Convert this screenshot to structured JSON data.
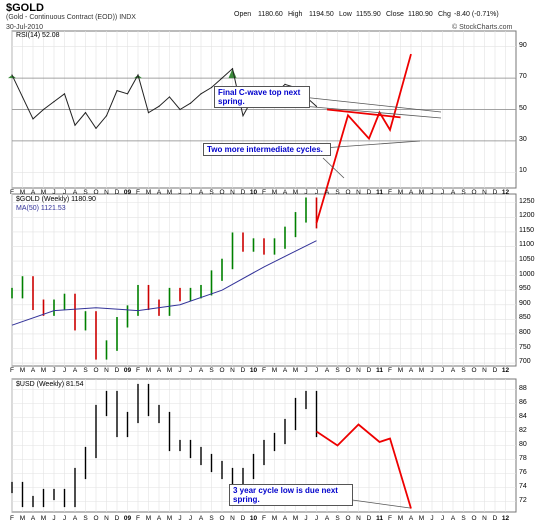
{
  "header": {
    "symbol": "$GOLD",
    "subtitle": "(Gold - Continuous Contract (EOD))  INDX",
    "date": "30-Jul-2010",
    "open_label": "Open",
    "open": "1180.60",
    "high_label": "High",
    "high": "1194.50",
    "low_label": "Low",
    "low": "1155.90",
    "close_label": "Close",
    "close": "1180.90",
    "chg_label": "Chg",
    "chg": "-8.40 (-0.71%)",
    "credit": "© StockCharts.com"
  },
  "panels": {
    "rsi_label": "RSI(14) 52.08",
    "gold_label": "$GOLD (Weekly) 1180.90",
    "ma_label": "MA(50) 1121.53",
    "usd_label": "$USD (Weekly) 81.54"
  },
  "annotations": {
    "rsi_note": "Final C-wave top next spring.",
    "gold_note": "Two more intermediate cycles.",
    "usd_note": "3 year cycle low is due next spring."
  },
  "colors": {
    "price_up": "#008000",
    "price_down": "#cc0000",
    "usd_bars": "#000000",
    "ma_line": "#333399",
    "rsi_line": "#222222",
    "rsi_fill_overbought": "#3a8a3a",
    "projection": "#ee0000",
    "annotation_text": "#0000cc",
    "gridline": "#e2e2e2",
    "threshold_line": "#888888"
  },
  "x_axis": {
    "labels": [
      "F",
      "M",
      "A",
      "M",
      "J",
      "J",
      "A",
      "S",
      "O",
      "N",
      "D",
      "09",
      "F",
      "M",
      "A",
      "M",
      "J",
      "J",
      "A",
      "S",
      "O",
      "N",
      "D",
      "10",
      "F",
      "M",
      "A",
      "M",
      "J",
      "J",
      "A",
      "S",
      "O",
      "N",
      "D",
      "11",
      "F",
      "M",
      "A",
      "M",
      "J",
      "J",
      "A",
      "S",
      "O",
      "N",
      "D",
      "12"
    ],
    "year_labels": [
      "09",
      "10",
      "11",
      "12"
    ]
  },
  "chart_data": [
    {
      "type": "line",
      "name": "RSI(14)",
      "x": [
        "2008-02",
        "2008-03",
        "2008-04",
        "2008-05",
        "2008-06",
        "2008-07",
        "2008-08",
        "2008-09",
        "2008-10",
        "2008-11",
        "2008-12",
        "2009-01",
        "2009-02",
        "2009-03",
        "2009-04",
        "2009-05",
        "2009-06",
        "2009-07",
        "2009-08",
        "2009-09",
        "2009-10",
        "2009-11",
        "2009-12",
        "2010-01",
        "2010-02",
        "2010-03",
        "2010-04",
        "2010-05",
        "2010-06",
        "2010-07"
      ],
      "y": [
        72,
        58,
        44,
        50,
        55,
        60,
        40,
        48,
        38,
        46,
        62,
        60,
        72,
        48,
        52,
        58,
        50,
        54,
        60,
        64,
        70,
        76,
        46,
        58,
        52,
        60,
        66,
        64,
        58,
        52
      ],
      "y_ticks": [
        10,
        30,
        50,
        70,
        90
      ],
      "threshold_lines": [
        30,
        50,
        70
      ],
      "ylim": [
        0,
        100
      ],
      "projection_x": [
        "2010-08",
        "2011-03"
      ],
      "projection_y": [
        50,
        45
      ]
    },
    {
      "type": "candlestick",
      "series": [
        {
          "name": "$GOLD (Weekly)",
          "x": [
            "2008-02",
            "2008-03",
            "2008-04",
            "2008-05",
            "2008-06",
            "2008-07",
            "2008-08",
            "2008-09",
            "2008-10",
            "2008-11",
            "2008-12",
            "2009-01",
            "2009-02",
            "2009-03",
            "2009-04",
            "2009-05",
            "2009-06",
            "2009-07",
            "2009-08",
            "2009-09",
            "2009-10",
            "2009-11",
            "2009-12",
            "2010-01",
            "2010-02",
            "2010-03",
            "2010-04",
            "2010-05",
            "2010-06",
            "2010-07"
          ],
          "values": [
            940,
            980,
            900,
            880,
            900,
            920,
            830,
            860,
            730,
            760,
            840,
            880,
            950,
            900,
            880,
            940,
            930,
            940,
            950,
            1000,
            1040,
            1130,
            1100,
            1110,
            1090,
            1110,
            1150,
            1200,
            1250,
            1180
          ]
        },
        {
          "name": "MA(50)",
          "x": [
            "2008-02",
            "2008-06",
            "2008-10",
            "2009-02",
            "2009-06",
            "2009-10",
            "2010-02",
            "2010-07"
          ],
          "values": [
            830,
            880,
            890,
            880,
            900,
            950,
            1030,
            1120
          ]
        }
      ],
      "y_ticks": [
        700,
        750,
        800,
        850,
        900,
        950,
        1000,
        1050,
        1100,
        1150,
        1200,
        1250
      ],
      "ylim": [
        690,
        1280
      ],
      "projection_x": [
        "2010-07",
        "2010-10",
        "2010-12",
        "2011-01",
        "2011-02",
        "2011-04"
      ],
      "projection_y": [
        1180,
        1550,
        1470,
        1560,
        1500,
        1760
      ]
    },
    {
      "type": "candlestick",
      "series": [
        {
          "name": "$USD (Weekly)",
          "x": [
            "2008-02",
            "2008-03",
            "2008-04",
            "2008-05",
            "2008-06",
            "2008-07",
            "2008-08",
            "2008-09",
            "2008-10",
            "2008-11",
            "2008-12",
            "2009-01",
            "2009-02",
            "2009-03",
            "2009-04",
            "2009-05",
            "2009-06",
            "2009-07",
            "2009-08",
            "2009-09",
            "2009-10",
            "2009-11",
            "2009-12",
            "2010-01",
            "2010-02",
            "2010-03",
            "2010-04",
            "2010-05",
            "2010-06",
            "2010-07"
          ],
          "values": [
            74,
            72,
            72,
            73,
            73,
            72,
            76,
            79,
            85,
            87,
            82,
            84,
            88,
            85,
            84,
            80,
            80,
            79,
            78,
            77,
            76,
            75,
            76,
            78,
            80,
            81,
            83,
            86,
            87,
            82
          ]
        }
      ],
      "y_ticks": [
        72,
        74,
        76,
        78,
        80,
        82,
        84,
        86,
        88
      ],
      "ylim": [
        70.5,
        89.5
      ],
      "projection_x": [
        "2010-07",
        "2010-09",
        "2010-11",
        "2011-01",
        "2011-02",
        "2011-04"
      ],
      "projection_y": [
        82,
        80,
        83,
        80.5,
        81,
        71
      ]
    }
  ]
}
